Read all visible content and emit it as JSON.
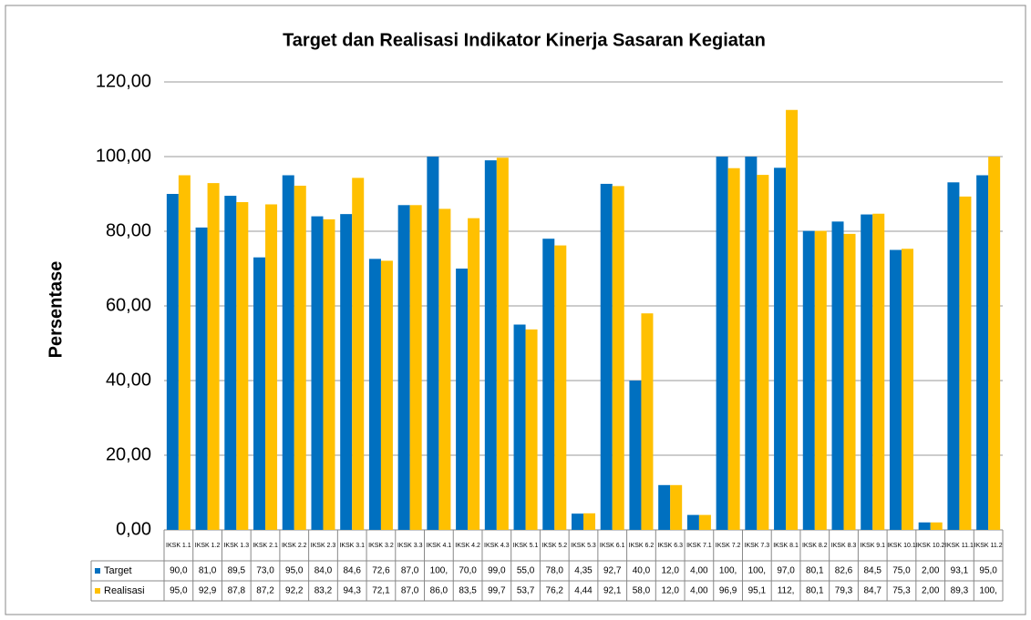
{
  "chart_data": {
    "type": "bar",
    "title": "Target dan Realisasi Indikator Kinerja Sasaran Kegiatan",
    "y_label": "Persentase",
    "categories": [
      "IKSK 1.1",
      "IKSK 1.2",
      "IKSK 1.3",
      "IKSK 2.1",
      "IKSK 2.2",
      "IKSK 2.3",
      "IKSK 3.1",
      "IKSK 3.2",
      "IKSK 3.3",
      "IKSK 4.1",
      "IKSK 4.2",
      "IKSK 4.3",
      "IKSK 5.1",
      "IKSK 5.2",
      "IKSK 5.3",
      "IKSK 6.1",
      "IKSK 6.2",
      "IKSK 6.3",
      "IKSK 7.1",
      "IKSK 7.2",
      "IKSK 7.3",
      "IKSK 8.1",
      "IKSK 8.2",
      "IKSK 8.3",
      "IKSK 9.1",
      "IKSK 10.1",
      "IKSK 10.2",
      "IKSK 11.1",
      "IKSK 11.2"
    ],
    "series": [
      {
        "name": "Target",
        "color": "#0070c0",
        "values": [
          90.0,
          81.0,
          89.5,
          73.0,
          95.0,
          84.0,
          84.6,
          72.6,
          87.0,
          100,
          70.0,
          99.0,
          55.0,
          78.0,
          4.35,
          92.7,
          40.0,
          12.0,
          4.0,
          100,
          100,
          97.0,
          80.1,
          82.6,
          84.5,
          75.0,
          2.0,
          93.1,
          95.0
        ],
        "value_labels": [
          "90,0",
          "81,0",
          "89,5",
          "73,0",
          "95,0",
          "84,0",
          "84,6",
          "72,6",
          "87,0",
          "100,",
          "70,0",
          "99,0",
          "55,0",
          "78,0",
          "4,35",
          "92,7",
          "40,0",
          "12,0",
          "4,00",
          "100,",
          "100,",
          "97,0",
          "80,1",
          "82,6",
          "84,5",
          "75,0",
          "2,00",
          "93,1",
          "95,0"
        ]
      },
      {
        "name": "Realisasi",
        "color": "#ffc000",
        "values": [
          95.0,
          92.9,
          87.8,
          87.2,
          92.2,
          83.2,
          94.3,
          72.1,
          87.0,
          86.0,
          83.5,
          99.7,
          53.7,
          76.2,
          4.44,
          92.1,
          58.0,
          12.0,
          4.0,
          96.9,
          95.1,
          112.5,
          80.1,
          79.3,
          84.7,
          75.3,
          2.0,
          89.3,
          100
        ],
        "value_labels": [
          "95,0",
          "92,9",
          "87,8",
          "87,2",
          "92,2",
          "83,2",
          "94,3",
          "72,1",
          "87,0",
          "86,0",
          "83,5",
          "99,7",
          "53,7",
          "76,2",
          "4,44",
          "92,1",
          "58,0",
          "12,0",
          "4,00",
          "96,9",
          "95,1",
          "112,",
          "80,1",
          "79,3",
          "84,7",
          "75,3",
          "2,00",
          "89,3",
          "100,"
        ]
      }
    ],
    "ylim": [
      0,
      120
    ],
    "yticks": [
      {
        "value": 0,
        "label": "0,00"
      },
      {
        "value": 20,
        "label": "20,00"
      },
      {
        "value": 40,
        "label": "40,00"
      },
      {
        "value": 60,
        "label": "60,00"
      },
      {
        "value": 80,
        "label": "80,00"
      },
      {
        "value": 100,
        "label": "100,00"
      },
      {
        "value": 120,
        "label": "120,00"
      }
    ],
    "grid": true
  }
}
